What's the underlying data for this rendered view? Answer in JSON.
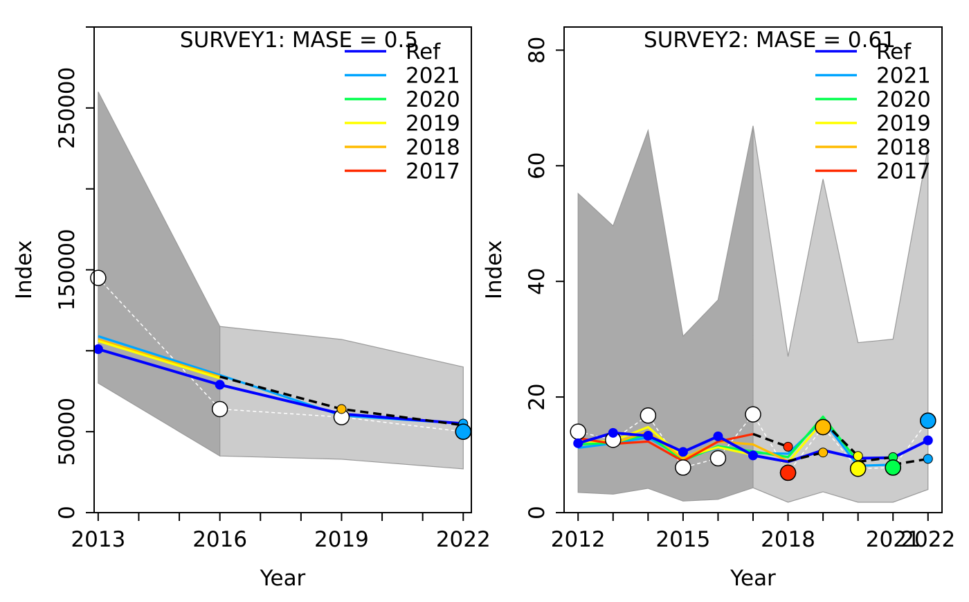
{
  "chart_data": [
    {
      "type": "line",
      "title": "SURVEY1: MASE = 0.5",
      "xlabel": "Year",
      "ylabel": "Index",
      "xlim": [
        2012.9,
        2022.2
      ],
      "ylim": [
        0,
        300000
      ],
      "x_ticks": [
        2013,
        2014,
        2015,
        2016,
        2017,
        2018,
        2019,
        2020,
        2021,
        2022
      ],
      "x_tick_labels": [
        {
          "x": 2013,
          "label": "2013"
        },
        {
          "x": 2016,
          "label": "2016"
        },
        {
          "x": 2019,
          "label": "2019"
        },
        {
          "x": 2022,
          "label": "2022"
        }
      ],
      "y_ticks": [
        0,
        50000,
        100000,
        150000,
        200000,
        250000,
        300000
      ],
      "y_tick_labels": [
        {
          "y": 0,
          "label": "0"
        },
        {
          "y": 50000,
          "label": "50000"
        },
        {
          "y": 150000,
          "label": "150000"
        },
        {
          "y": 250000,
          "label": "250000"
        }
      ],
      "legend": {
        "position": "top-right",
        "entries": [
          {
            "label": "Ref",
            "color": "#0000ff"
          },
          {
            "label": "2021",
            "color": "#00a5ff"
          },
          {
            "label": "2020",
            "color": "#00ff4c"
          },
          {
            "label": "2019",
            "color": "#ffff00"
          },
          {
            "label": "2018",
            "color": "#ffbb00"
          },
          {
            "label": "2017",
            "color": "#ff2a00"
          }
        ]
      },
      "bands": [
        {
          "x": [
            2013,
            2016
          ],
          "lower": [
            80000,
            35000
          ],
          "upper": [
            260000,
            115000
          ],
          "color": "#aaaaaa"
        },
        {
          "x": [
            2016,
            2019,
            2022
          ],
          "lower": [
            35000,
            33000,
            27000
          ],
          "upper": [
            115000,
            107000,
            90000
          ],
          "color": "#cccccc"
        }
      ],
      "observed": {
        "x": [
          2013,
          2016,
          2019,
          2022
        ],
        "y": [
          145000,
          64000,
          59000,
          50000
        ],
        "color": "#ffffff",
        "stroke": "#000000"
      },
      "series": [
        {
          "name": "2021",
          "color": "#00a5ff",
          "x": [
            2013,
            2016,
            2019,
            2022
          ],
          "y": [
            109000,
            85000,
            60000,
            55000
          ]
        },
        {
          "name": "2018",
          "color": "#ffbb00",
          "x": [
            2013,
            2016
          ],
          "y": [
            107000,
            84000
          ]
        },
        {
          "name": "2019",
          "color": "#ffff00",
          "x": [
            2013,
            2016
          ],
          "y": [
            106000,
            83000
          ]
        },
        {
          "name": "Ref",
          "color": "#0000ff",
          "x": [
            2013,
            2016,
            2019,
            2022
          ],
          "y": [
            101000,
            79000,
            61000,
            55000
          ]
        }
      ],
      "forecasts": [
        {
          "color": "#000000",
          "x": [
            2016,
            2019,
            2022
          ],
          "y": [
            84000,
            64000,
            54000
          ]
        }
      ],
      "points": [
        {
          "x": 2013,
          "y": 101000,
          "color": "#0000ff",
          "size": "small"
        },
        {
          "x": 2016,
          "y": 79000,
          "color": "#0000ff",
          "size": "small"
        },
        {
          "x": 2019,
          "y": 64000,
          "color": "#ffbb00",
          "size": "small"
        },
        {
          "x": 2022,
          "y": 55000,
          "color": "#00a5ff",
          "size": "small"
        },
        {
          "x": 2022,
          "y": 50000,
          "color": "#00a5ff",
          "size": "large"
        }
      ]
    },
    {
      "type": "line",
      "title": "SURVEY2: MASE = 0.61",
      "xlabel": "Year",
      "ylabel": "Index",
      "xlim": [
        2011.6,
        2022.4
      ],
      "ylim": [
        0,
        84
      ],
      "x_ticks": [
        2012,
        2013,
        2014,
        2015,
        2016,
        2017,
        2018,
        2019,
        2020,
        2021,
        2022
      ],
      "x_tick_labels": [
        {
          "x": 2012,
          "label": "2012"
        },
        {
          "x": 2015,
          "label": "2015"
        },
        {
          "x": 2018,
          "label": "2018"
        },
        {
          "x": 2021,
          "label": "2021"
        },
        {
          "x": 2022,
          "label": "2022"
        }
      ],
      "y_ticks": [
        0,
        20,
        40,
        60,
        80
      ],
      "y_tick_labels": [
        {
          "y": 0,
          "label": "0"
        },
        {
          "y": 20,
          "label": "20"
        },
        {
          "y": 40,
          "label": "40"
        },
        {
          "y": 60,
          "label": "60"
        },
        {
          "y": 80,
          "label": "80"
        }
      ],
      "legend": {
        "position": "top-right",
        "entries": [
          {
            "label": "Ref",
            "color": "#0000ff"
          },
          {
            "label": "2021",
            "color": "#00a5ff"
          },
          {
            "label": "2020",
            "color": "#00ff4c"
          },
          {
            "label": "2019",
            "color": "#ffff00"
          },
          {
            "label": "2018",
            "color": "#ffbb00"
          },
          {
            "label": "2017",
            "color": "#ff2a00"
          }
        ]
      },
      "bands": [
        {
          "x": [
            2012,
            2013,
            2014,
            2015,
            2016,
            2017
          ],
          "lower": [
            3.5,
            3.2,
            4.2,
            2.0,
            2.3,
            4.3
          ],
          "upper": [
            55.2,
            49.6,
            66.1,
            30.5,
            36.8,
            66.9
          ],
          "color": "#aaaaaa"
        },
        {
          "x": [
            2017,
            2018,
            2019,
            2020,
            2021,
            2022
          ],
          "lower": [
            4.3,
            1.8,
            3.6,
            1.8,
            1.8,
            4.0
          ],
          "upper": [
            66.9,
            27.0,
            57.7,
            29.4,
            30.0,
            63.2
          ],
          "color": "#cccccc"
        }
      ],
      "observed": {
        "x": [
          2012,
          2013,
          2014,
          2015,
          2016,
          2017,
          2018,
          2019,
          2020,
          2021,
          2022
        ],
        "y": [
          14.0,
          12.6,
          16.8,
          7.8,
          9.4,
          17.0,
          6.9,
          14.8,
          7.6,
          7.8,
          15.9
        ],
        "color": "#ffffff",
        "stroke": "#000000"
      },
      "series": [
        {
          "name": "2021",
          "color": "#00a5ff",
          "x": [
            2012,
            2013,
            2014,
            2015,
            2016,
            2017,
            2018,
            2019,
            2020,
            2021
          ],
          "y": [
            11.2,
            12.0,
            13.0,
            9.5,
            11.2,
            10.3,
            10.2,
            16.0,
            8.1,
            8.3
          ]
        },
        {
          "name": "2020",
          "color": "#00ff4c",
          "x": [
            2012,
            2013,
            2014,
            2015,
            2016,
            2017,
            2018,
            2019,
            2020
          ],
          "y": [
            11.8,
            12.1,
            13.5,
            9.0,
            11.5,
            10.6,
            9.6,
            16.6,
            8.8
          ]
        },
        {
          "name": "2019",
          "color": "#ffff00",
          "x": [
            2012,
            2013,
            2014,
            2015,
            2016,
            2017,
            2018,
            2019
          ],
          "y": [
            12.2,
            12.4,
            14.8,
            9.6,
            11.3,
            10.0,
            8.7,
            15.8
          ]
        },
        {
          "name": "2018",
          "color": "#ffbb00",
          "x": [
            2012,
            2013,
            2014,
            2015,
            2016,
            2017,
            2018
          ],
          "y": [
            12.8,
            12.0,
            14.0,
            9.3,
            12.3,
            11.8,
            8.9
          ]
        },
        {
          "name": "2017",
          "color": "#ff2a00",
          "x": [
            2012,
            2013,
            2014,
            2015,
            2016,
            2017
          ],
          "y": [
            12.9,
            11.9,
            12.3,
            8.9,
            12.3,
            13.6
          ]
        },
        {
          "name": "Ref",
          "color": "#0000ff",
          "x": [
            2012,
            2013,
            2014,
            2015,
            2016,
            2017,
            2018,
            2019,
            2020,
            2021,
            2022
          ],
          "y": [
            12.0,
            13.8,
            13.3,
            10.5,
            13.2,
            9.9,
            8.8,
            10.8,
            9.4,
            9.5,
            12.5
          ]
        }
      ],
      "forecasts": [
        {
          "color": "#000000",
          "x": [
            2017,
            2018
          ],
          "y": [
            13.6,
            11.4
          ]
        },
        {
          "color": "#000000",
          "x": [
            2018,
            2019
          ],
          "y": [
            8.9,
            10.4
          ]
        },
        {
          "color": "#000000",
          "x": [
            2019,
            2020
          ],
          "y": [
            15.8,
            9.8
          ]
        },
        {
          "color": "#000000",
          "x": [
            2020,
            2021
          ],
          "y": [
            8.8,
            9.6
          ]
        },
        {
          "color": "#000000",
          "x": [
            2021,
            2022
          ],
          "y": [
            8.3,
            9.3
          ]
        }
      ],
      "points": [
        {
          "x": 2012,
          "y": 12.0,
          "color": "#0000ff",
          "size": "small"
        },
        {
          "x": 2013,
          "y": 13.8,
          "color": "#0000ff",
          "size": "small"
        },
        {
          "x": 2014,
          "y": 13.3,
          "color": "#0000ff",
          "size": "small"
        },
        {
          "x": 2015,
          "y": 10.5,
          "color": "#0000ff",
          "size": "small"
        },
        {
          "x": 2016,
          "y": 13.2,
          "color": "#0000ff",
          "size": "small"
        },
        {
          "x": 2017,
          "y": 9.9,
          "color": "#0000ff",
          "size": "small"
        },
        {
          "x": 2018,
          "y": 11.4,
          "color": "#ff2a00",
          "size": "small"
        },
        {
          "x": 2018,
          "y": 6.9,
          "color": "#ff2a00",
          "size": "large"
        },
        {
          "x": 2019,
          "y": 10.4,
          "color": "#ffbb00",
          "size": "small"
        },
        {
          "x": 2019,
          "y": 14.8,
          "color": "#ffbb00",
          "size": "large"
        },
        {
          "x": 2020,
          "y": 9.8,
          "color": "#ffff00",
          "size": "small"
        },
        {
          "x": 2020,
          "y": 7.6,
          "color": "#ffff00",
          "size": "large"
        },
        {
          "x": 2021,
          "y": 9.6,
          "color": "#00ff4c",
          "size": "small"
        },
        {
          "x": 2021,
          "y": 7.8,
          "color": "#00ff4c",
          "size": "large"
        },
        {
          "x": 2022,
          "y": 12.5,
          "color": "#0000ff",
          "size": "small"
        },
        {
          "x": 2022,
          "y": 9.3,
          "color": "#00a5ff",
          "size": "small"
        },
        {
          "x": 2022,
          "y": 15.9,
          "color": "#00a5ff",
          "size": "large"
        }
      ]
    }
  ]
}
